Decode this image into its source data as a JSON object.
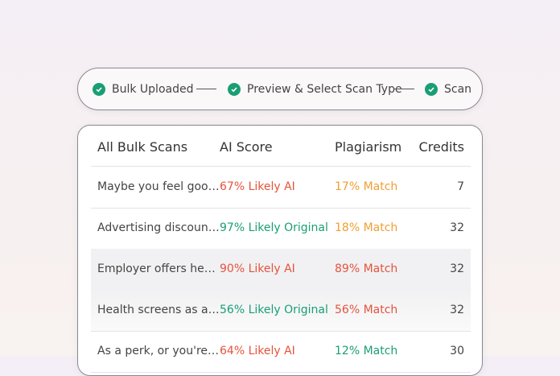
{
  "stepper": {
    "steps": [
      "Bulk Uploaded",
      "Preview & Select Scan Type",
      "Scan"
    ]
  },
  "table": {
    "header": [
      "All Bulk Scans",
      "AI Score",
      "Plagiarism",
      "Credits"
    ],
    "rows": [
      [
        "Maybe you feel goo…",
        "67% Likely AI",
        "17% Match",
        7
      ],
      [
        "Advertising discoun…",
        "97% Likely Original",
        "18% Match",
        32
      ],
      [
        "Employer offers he…",
        "90% Likely AI",
        "89% Match",
        32
      ],
      [
        "Health screens as a…",
        "56% Likely Original",
        "56% Match",
        32
      ],
      [
        "As a perk, or you're…",
        "64% Likely AI",
        "12% Match",
        30
      ]
    ]
  }
}
